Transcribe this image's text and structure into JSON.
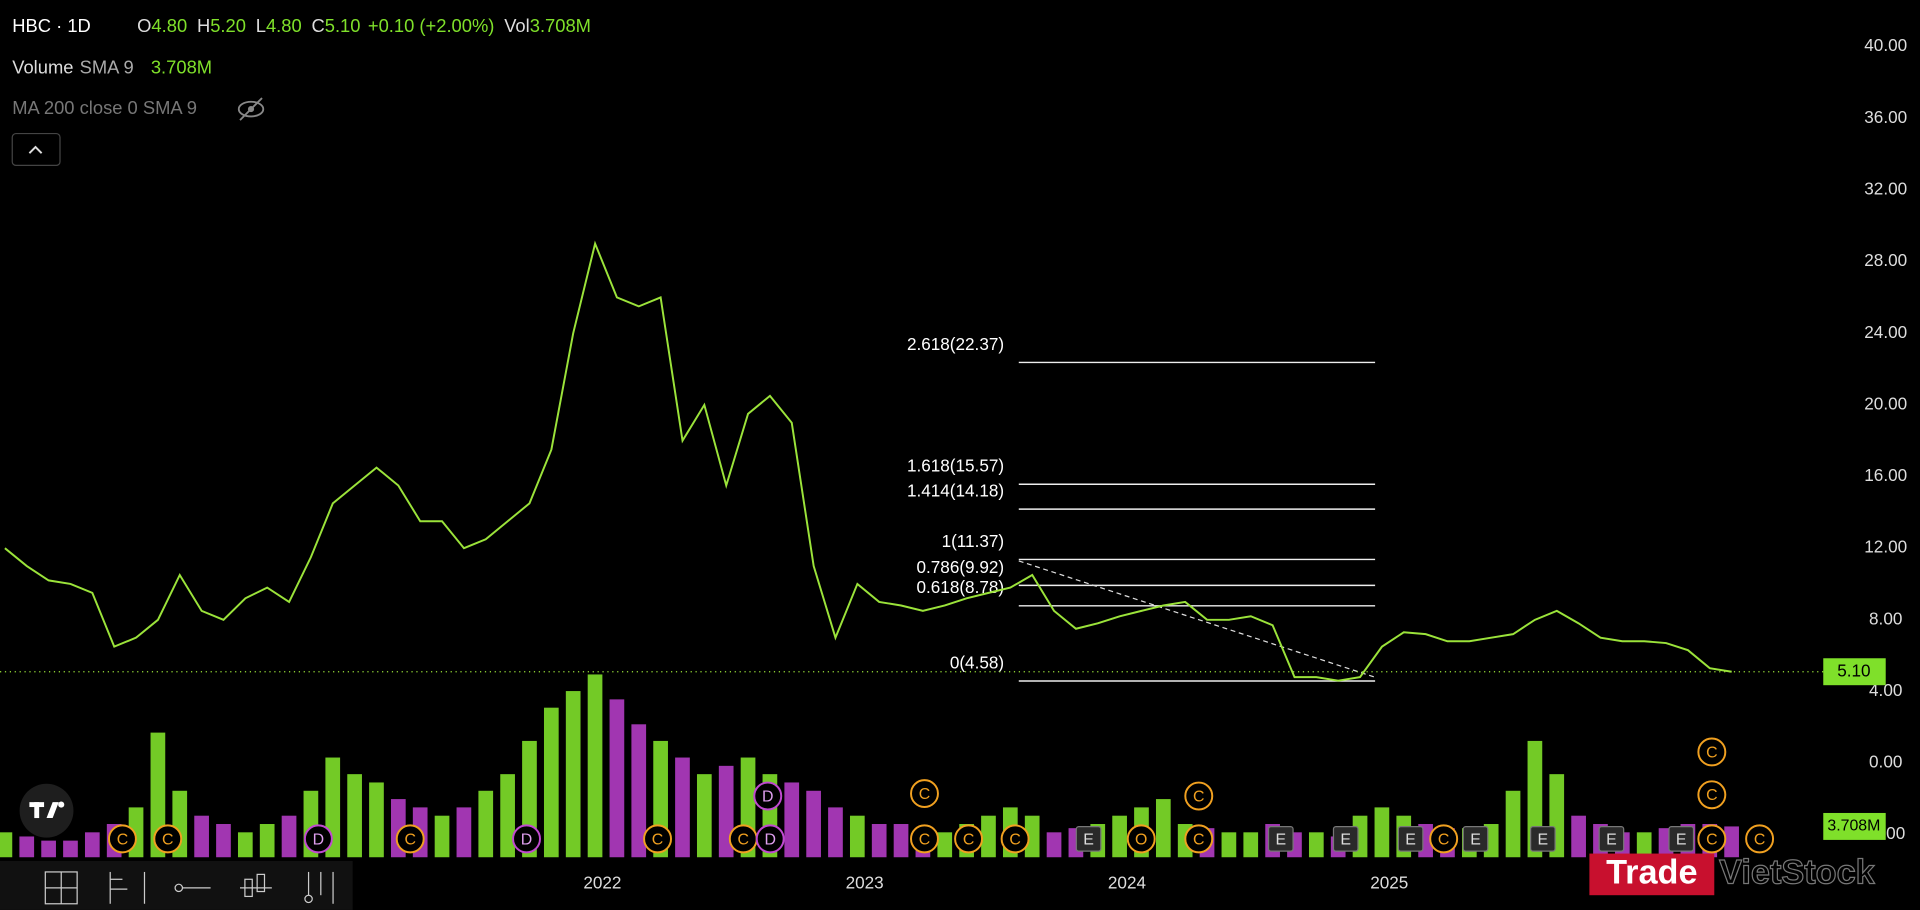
{
  "header": {
    "symbol": "HBC · 1D",
    "ohlc": [
      {
        "key": "O",
        "value": "4.80"
      },
      {
        "key": "H",
        "value": "5.20"
      },
      {
        "key": "L",
        "value": "4.80"
      },
      {
        "key": "C",
        "value": "5.10"
      }
    ],
    "change": "+0.10 (+2.00%)",
    "volume_key": "Vol",
    "volume_value": "3.708M"
  },
  "legend": {
    "volume_name": "Volume",
    "volume_sma": "SMA 9",
    "volume_value": "3.708M",
    "ma_name": "MA 200 close 0 SMA 9"
  },
  "watermark": {
    "left": "Trade",
    "right": "VietStock"
  },
  "chart_data": {
    "type": "line",
    "categories": [
      null,
      null,
      null,
      null,
      null,
      null,
      null,
      null,
      null,
      null,
      null,
      null,
      null,
      null,
      null,
      null,
      null,
      null,
      null,
      null,
      null,
      null,
      null,
      null,
      null,
      null,
      null,
      "2022",
      null,
      null,
      null,
      null,
      null,
      null,
      null,
      null,
      null,
      null,
      null,
      "2023",
      null,
      null,
      null,
      null,
      null,
      null,
      null,
      null,
      null,
      null,
      null,
      "2024",
      null,
      null,
      null,
      null,
      null,
      null,
      null,
      null,
      null,
      null,
      null,
      "2025",
      null,
      null,
      null,
      null,
      null,
      null,
      null,
      null,
      null,
      null,
      null,
      null,
      null,
      null,
      null,
      null
    ],
    "series": [
      {
        "color": "#9be33a",
        "values": [
          12,
          11,
          10.2,
          10,
          9.5,
          6.5,
          7,
          8,
          10.5,
          8.5,
          8,
          9.2,
          9.8,
          9,
          11.5,
          14.5,
          15.5,
          16.5,
          15.5,
          13.5,
          13.5,
          12,
          12.5,
          13.5,
          14.5,
          17.5,
          24,
          29,
          26,
          25.5,
          26,
          18,
          20,
          15.5,
          19.5,
          20.5,
          19,
          11,
          7,
          10,
          9,
          8.8,
          8.5,
          8.8,
          9.2,
          9.5,
          9.8,
          10.5,
          8.5,
          7.5,
          7.8,
          8.2,
          8.5,
          8.8,
          9,
          8,
          8,
          8.2,
          7.7,
          4.8,
          4.8,
          4.6,
          4.8,
          6.5,
          7.3,
          7.2,
          6.8,
          6.8,
          7,
          7.2,
          8,
          8.5,
          7.8,
          7,
          6.8,
          6.8,
          6.7,
          6.3,
          5.3,
          5.1
        ]
      }
    ],
    "last_price_label": "5.10",
    "ylim": [
      -5.6,
      42.6
    ],
    "yticks": [
      {
        "value": 40,
        "label": "40.00"
      },
      {
        "value": 36,
        "label": "36.00"
      },
      {
        "value": 32,
        "label": "32.00"
      },
      {
        "value": 28,
        "label": "28.00"
      },
      {
        "value": 24,
        "label": "24.00"
      },
      {
        "value": 20,
        "label": "20.00"
      },
      {
        "value": 16,
        "label": "16.00"
      },
      {
        "value": 12,
        "label": "12.00"
      },
      {
        "value": 8,
        "label": "8.00"
      },
      {
        "value": 4,
        "label": "4.00"
      },
      {
        "value": 0,
        "label": "0.00"
      },
      {
        "value": -4,
        "label": "-4.00"
      }
    ],
    "volume": {
      "up_color": "#7fe02a",
      "down_color": "#b23cc4",
      "values": [
        3,
        2.5,
        2,
        2,
        3,
        4,
        6,
        15,
        8,
        5,
        4,
        3,
        4,
        5,
        8,
        12,
        10,
        9,
        7,
        6,
        5,
        6,
        8,
        10,
        14,
        18,
        20,
        22,
        19,
        16,
        14,
        12,
        10,
        11,
        12,
        10,
        9,
        8,
        6,
        5,
        4,
        4,
        3.5,
        3,
        4,
        5,
        6,
        5,
        3,
        3.5,
        4,
        5,
        6,
        7,
        4,
        3.5,
        3,
        3,
        4,
        3,
        3,
        2.5,
        5,
        6,
        5,
        4,
        3.5,
        3.5,
        4,
        8,
        14,
        10,
        5,
        4,
        3,
        3,
        3.5,
        4,
        4,
        3.708
      ],
      "last_value_label": "3.708M"
    },
    "y2lim": [
      0,
      28
    ],
    "fib_levels": [
      {
        "label": "2.618(22.37)",
        "value": 22.37
      },
      {
        "label": "1.618(15.57)",
        "value": 15.57
      },
      {
        "label": "1.414(14.18)",
        "value": 14.18
      },
      {
        "label": "1(11.37)",
        "value": 11.37
      },
      {
        "label": "0.786(9.92)",
        "value": 9.92
      },
      {
        "label": "0.618(8.78)",
        "value": 8.78
      },
      {
        "label": "0(4.58)",
        "value": 4.58
      }
    ],
    "events": [
      "C",
      "C",
      "D",
      "C",
      "D",
      "C",
      "C",
      "D",
      "D",
      "C",
      "C",
      "C",
      "C",
      "E",
      "O",
      "C",
      "C",
      "E",
      "E",
      "E",
      "C",
      "E",
      "E",
      "E",
      "E",
      "C",
      "C",
      "C",
      "C"
    ]
  }
}
